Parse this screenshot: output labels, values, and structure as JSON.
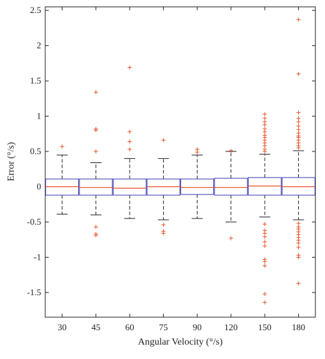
{
  "chart_data": {
    "type": "box",
    "title": "",
    "xlabel": "Angular Velocity (°/s)",
    "ylabel": "Error (°/s)",
    "categories": [
      "30",
      "45",
      "60",
      "75",
      "90",
      "120",
      "150",
      "180"
    ],
    "ylim": [
      -1.85,
      2.55
    ],
    "yticks": [
      -1.5,
      -1,
      -0.5,
      0,
      0.5,
      1,
      1.5,
      2,
      2.5
    ],
    "ytick_labels": [
      "-1.5",
      "-1",
      "-0.5",
      "0",
      "0.5",
      "1",
      "1.5",
      "2",
      "2.5"
    ],
    "grid": false,
    "legend": "none",
    "colors": {
      "box": "#3b3bb0",
      "median": "#e8542a",
      "whisker": "#222222",
      "outlier": "#e8542a"
    },
    "boxes": [
      {
        "category": "30",
        "q1": -0.12,
        "median": 0.0,
        "q3": 0.11,
        "whisker_low": -0.39,
        "whisker_high": 0.45,
        "outliers": [
          0.57
        ]
      },
      {
        "category": "45",
        "q1": -0.12,
        "median": -0.01,
        "q3": 0.11,
        "whisker_low": -0.4,
        "whisker_high": 0.34,
        "outliers": [
          1.34,
          0.82,
          0.8,
          0.5,
          -0.57,
          -0.67,
          -0.69
        ]
      },
      {
        "category": "60",
        "q1": -0.12,
        "median": -0.02,
        "q3": 0.11,
        "whisker_low": -0.45,
        "whisker_high": 0.4,
        "outliers": [
          1.69,
          0.78,
          0.64,
          0.53
        ]
      },
      {
        "category": "75",
        "q1": -0.12,
        "median": 0.0,
        "q3": 0.11,
        "whisker_low": -0.47,
        "whisker_high": 0.4,
        "outliers": [
          0.66,
          -0.54,
          -0.63,
          -0.66
        ]
      },
      {
        "category": "90",
        "q1": -0.11,
        "median": -0.01,
        "q3": 0.11,
        "whisker_low": -0.45,
        "whisker_high": 0.45,
        "outliers": [
          0.53,
          0.49
        ]
      },
      {
        "category": "120",
        "q1": -0.12,
        "median": -0.01,
        "q3": 0.12,
        "whisker_low": -0.5,
        "whisker_high": 0.5,
        "outliers": [
          0.51,
          -0.73
        ]
      },
      {
        "category": "150",
        "q1": -0.12,
        "median": 0.01,
        "q3": 0.13,
        "whisker_low": -0.43,
        "whisker_high": 0.46,
        "outliers": [
          1.03,
          0.97,
          0.92,
          0.88,
          0.82,
          0.78,
          0.73,
          0.7,
          0.66,
          0.62,
          0.58,
          0.53,
          0.5,
          -0.53,
          -0.62,
          -0.66,
          -0.71,
          -0.78,
          -0.84,
          -1.03,
          -1.06,
          -1.12,
          -1.52,
          -1.64
        ]
      },
      {
        "category": "180",
        "q1": -0.12,
        "median": 0.0,
        "q3": 0.13,
        "whisker_low": -0.47,
        "whisker_high": 0.51,
        "outliers": [
          2.37,
          1.6,
          1.05,
          0.97,
          0.92,
          0.86,
          0.81,
          0.76,
          0.72,
          0.7,
          0.66,
          0.62,
          0.58,
          0.55,
          -0.52,
          -0.57,
          -0.6,
          -0.64,
          -0.68,
          -0.72,
          -0.76,
          -0.8,
          -0.86,
          -0.97,
          -1.0,
          -1.37
        ]
      }
    ]
  }
}
